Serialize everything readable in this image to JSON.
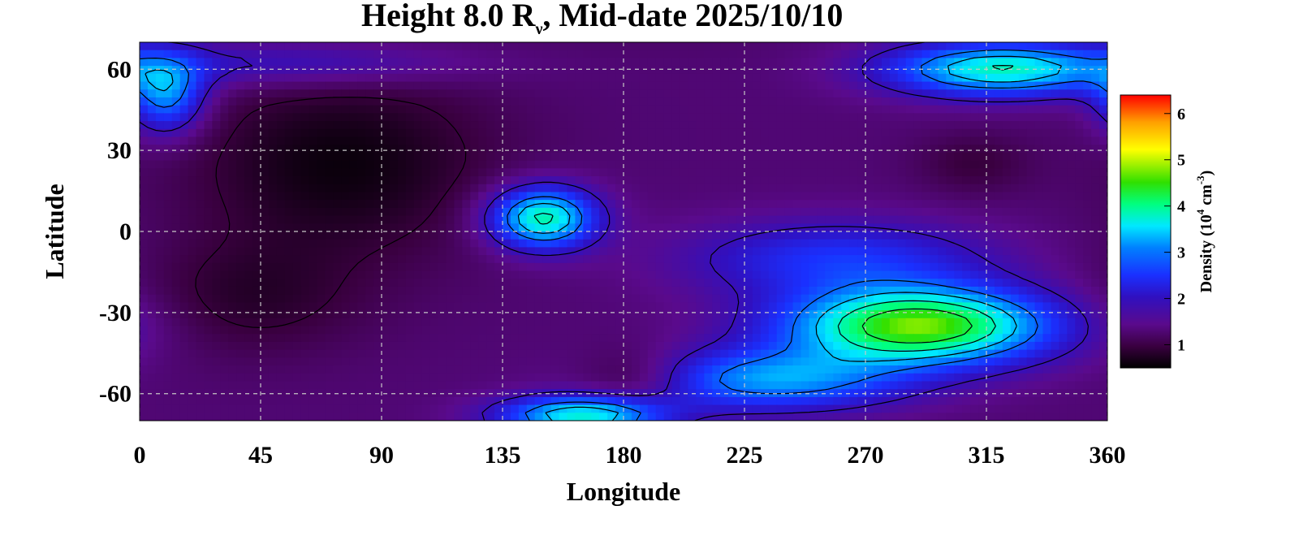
{
  "chart_data": {
    "type": "heatmap",
    "title_main": "Height 8.0 R",
    "title_sub": "ν",
    "title_rest": ", Mid-date 2025/10/10",
    "xlabel": "Longitude",
    "ylabel": "Latitude",
    "xlim": [
      0,
      360
    ],
    "ylim": [
      -70,
      70
    ],
    "xticks": [
      "0",
      "45",
      "90",
      "135",
      "180",
      "225",
      "270",
      "315",
      "360"
    ],
    "yticks": [
      "60",
      "30",
      "0",
      "-30",
      "-60"
    ],
    "grid": true,
    "colorbar": {
      "label_main": "Density (10",
      "label_exp1": "4",
      "label_mid": " cm",
      "label_exp2": "-3",
      "label_end": ")",
      "range": [
        0.5,
        6.4
      ],
      "ticks": [
        "1",
        "2",
        "3",
        "4",
        "5",
        "6"
      ],
      "colormap": [
        "#000000",
        "#3a0040",
        "#5a0a8c",
        "#3010c0",
        "#1a30ff",
        "#0080ff",
        "#00e8ff",
        "#00ff80",
        "#30e000",
        "#ffff00",
        "#ffa000",
        "#ff0000"
      ]
    },
    "background_level": 1.4,
    "features": [
      {
        "lon": 10,
        "lat": 50,
        "value": 3.2,
        "spread_lon": 10,
        "spread_lat": 10
      },
      {
        "lon": 60,
        "lat": 62,
        "value": 2.2,
        "spread_lon": 45,
        "spread_lat": 6
      },
      {
        "lon": 75,
        "lat": 25,
        "value": 0.6,
        "spread_lon": 40,
        "spread_lat": 25
      },
      {
        "lon": 40,
        "lat": -25,
        "value": 0.9,
        "spread_lon": 30,
        "spread_lat": 15
      },
      {
        "lon": 150,
        "lat": 5,
        "value": 4.2,
        "spread_lon": 14,
        "spread_lat": 8
      },
      {
        "lon": 185,
        "lat": -55,
        "value": 0.7,
        "spread_lon": 15,
        "spread_lat": 8
      },
      {
        "lon": 165,
        "lat": -68,
        "value": 4.0,
        "spread_lon": 22,
        "spread_lat": 5
      },
      {
        "lon": 235,
        "lat": -55,
        "value": 3.3,
        "spread_lon": 35,
        "spread_lat": 8
      },
      {
        "lon": 290,
        "lat": -35,
        "value": 5.0,
        "spread_lon": 35,
        "spread_lat": 10
      },
      {
        "lon": 320,
        "lat": 60,
        "value": 4.0,
        "spread_lon": 30,
        "spread_lat": 7
      },
      {
        "lon": 260,
        "lat": -10,
        "value": 2.6,
        "spread_lon": 40,
        "spread_lat": 10
      },
      {
        "lon": 170,
        "lat": 80,
        "value": 1.2,
        "spread_lon": 60,
        "spread_lat": 8
      },
      {
        "lon": 310,
        "lat": 25,
        "value": 1.0,
        "spread_lon": 15,
        "spread_lat": 8
      }
    ]
  }
}
